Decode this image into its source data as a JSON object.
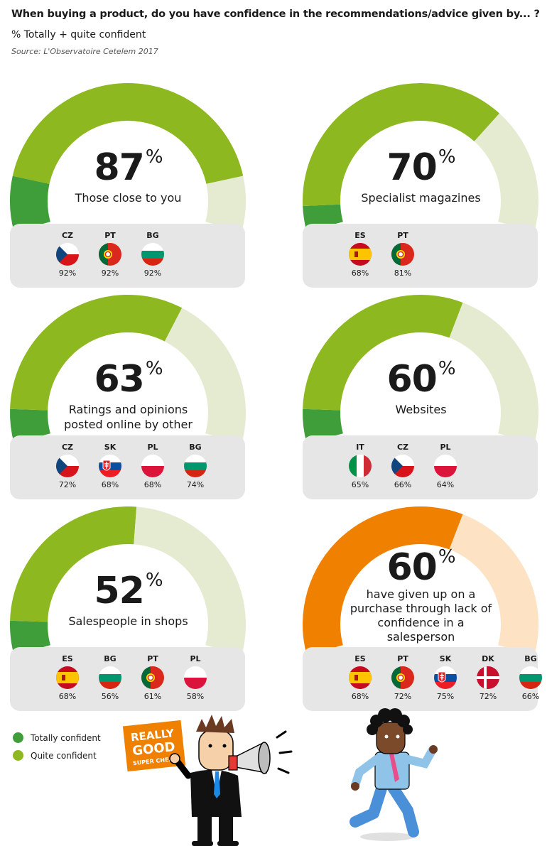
{
  "header": {
    "title": "When buying a product, do you have confidence in the recommendations/advice given by... ?",
    "subtitle": "% Totally + quite confident",
    "source": "Source: L'Observatoire Cetelem 2017"
  },
  "colors": {
    "totally": "#3f9e3a",
    "quite": "#8db820",
    "rest": "#e5ebd0",
    "orange": "#f08000",
    "orange_light": "#fde2c4",
    "flag_box": "#e6e6e6"
  },
  "chart_data": [
    {
      "type": "gauge",
      "value": 87,
      "value_text": "87",
      "unit": "%",
      "label": "Those close to you",
      "totally_confident": 13,
      "color_scheme": "green",
      "countries": [
        {
          "code": "CZ",
          "value": "92%"
        },
        {
          "code": "PT",
          "value": "92%"
        },
        {
          "code": "BG",
          "value": "92%"
        }
      ]
    },
    {
      "type": "gauge",
      "value": 70,
      "value_text": "70",
      "unit": "%",
      "label": "Specialist magazines",
      "totally_confident": 6,
      "color_scheme": "green",
      "countries": [
        {
          "code": "ES",
          "value": "68%"
        },
        {
          "code": "PT",
          "value": "81%"
        }
      ]
    },
    {
      "type": "gauge",
      "value": 63,
      "value_text": "63",
      "unit": "%",
      "label": "Ratings and opinions posted online by other consumers",
      "totally_confident": 8,
      "color_scheme": "green",
      "countries": [
        {
          "code": "CZ",
          "value": "72%"
        },
        {
          "code": "SK",
          "value": "68%"
        },
        {
          "code": "PL",
          "value": "68%"
        },
        {
          "code": "BG",
          "value": "74%"
        }
      ]
    },
    {
      "type": "gauge",
      "value": 60,
      "value_text": "60",
      "unit": "%",
      "label": "Websites",
      "totally_confident": 8,
      "color_scheme": "green",
      "countries": [
        {
          "code": "IT",
          "value": "65%"
        },
        {
          "code": "CZ",
          "value": "66%"
        },
        {
          "code": "PL",
          "value": "64%"
        }
      ]
    },
    {
      "type": "gauge",
      "value": 52,
      "value_text": "52",
      "unit": "%",
      "label": "Salespeople in shops",
      "totally_confident": 8,
      "color_scheme": "green",
      "countries": [
        {
          "code": "ES",
          "value": "68%"
        },
        {
          "code": "BG",
          "value": "56%"
        },
        {
          "code": "PT",
          "value": "61%"
        },
        {
          "code": "PL",
          "value": "58%"
        }
      ]
    },
    {
      "type": "gauge",
      "value": 60,
      "value_text": "60",
      "unit": "%",
      "label": "have given up on a purchase through lack of confidence in a salesperson",
      "color_scheme": "orange",
      "countries": [
        {
          "code": "ES",
          "value": "68%"
        },
        {
          "code": "PT",
          "value": "72%"
        },
        {
          "code": "SK",
          "value": "75%"
        },
        {
          "code": "DK",
          "value": "72%"
        },
        {
          "code": "BG",
          "value": "66%"
        }
      ]
    }
  ],
  "legend": [
    {
      "label": "Totally confident",
      "color": "#3f9e3a"
    },
    {
      "label": "Quite confident",
      "color": "#8db820"
    }
  ],
  "illustration": {
    "sign_line1": "REALLY",
    "sign_line2": "GOOD",
    "sign_line3": "SUPER CHEAP"
  }
}
